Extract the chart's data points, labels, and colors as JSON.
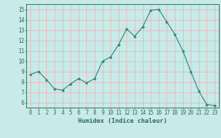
{
  "x": [
    0,
    1,
    2,
    3,
    4,
    5,
    6,
    7,
    8,
    9,
    10,
    11,
    12,
    13,
    14,
    15,
    16,
    17,
    18,
    19,
    20,
    21,
    22,
    23
  ],
  "y": [
    8.7,
    9.0,
    8.2,
    7.3,
    7.2,
    7.8,
    8.3,
    7.9,
    8.3,
    10.0,
    10.4,
    11.6,
    13.1,
    12.4,
    13.3,
    14.9,
    15.0,
    13.8,
    12.6,
    11.0,
    9.0,
    7.1,
    5.8,
    5.7
  ],
  "line_color": "#2e8b7a",
  "marker": "o",
  "marker_size": 2.2,
  "bg_color": "#c8eae8",
  "grid_color": "#e0b8b8",
  "xlabel": "Humidex (Indice chaleur)",
  "ylim": [
    5.5,
    15.5
  ],
  "xlim": [
    -0.5,
    23.5
  ],
  "yticks": [
    6,
    7,
    8,
    9,
    10,
    11,
    12,
    13,
    14,
    15
  ],
  "xticks": [
    0,
    1,
    2,
    3,
    4,
    5,
    6,
    7,
    8,
    9,
    10,
    11,
    12,
    13,
    14,
    15,
    16,
    17,
    18,
    19,
    20,
    21,
    22,
    23
  ],
  "tick_color": "#2e6b5a",
  "label_color": "#2e6b5a",
  "spine_color": "#2e6b5a",
  "tick_fontsize": 5.5,
  "xlabel_fontsize": 6.5
}
